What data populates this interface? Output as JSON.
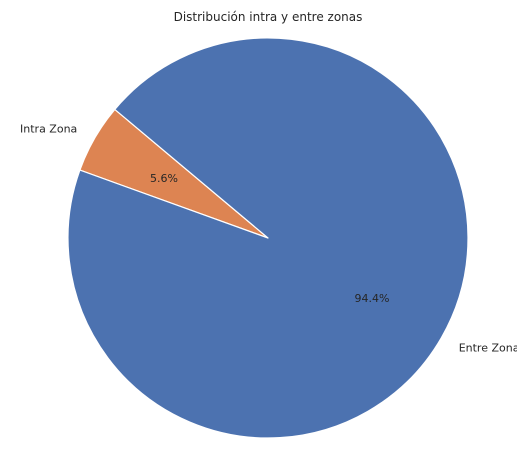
{
  "chart_data": {
    "type": "pie",
    "title": "Distribución intra y entre zonas",
    "categories": [
      "Intra Zona",
      "Entre Zonas"
    ],
    "values": [
      5.6,
      94.4
    ],
    "percent_labels": [
      "5.6%",
      "94.4%"
    ],
    "colors": [
      "#dd8452",
      "#4c72b0"
    ],
    "start_angle_deg": 140,
    "direction": "counterclockwise",
    "legend": "none"
  }
}
